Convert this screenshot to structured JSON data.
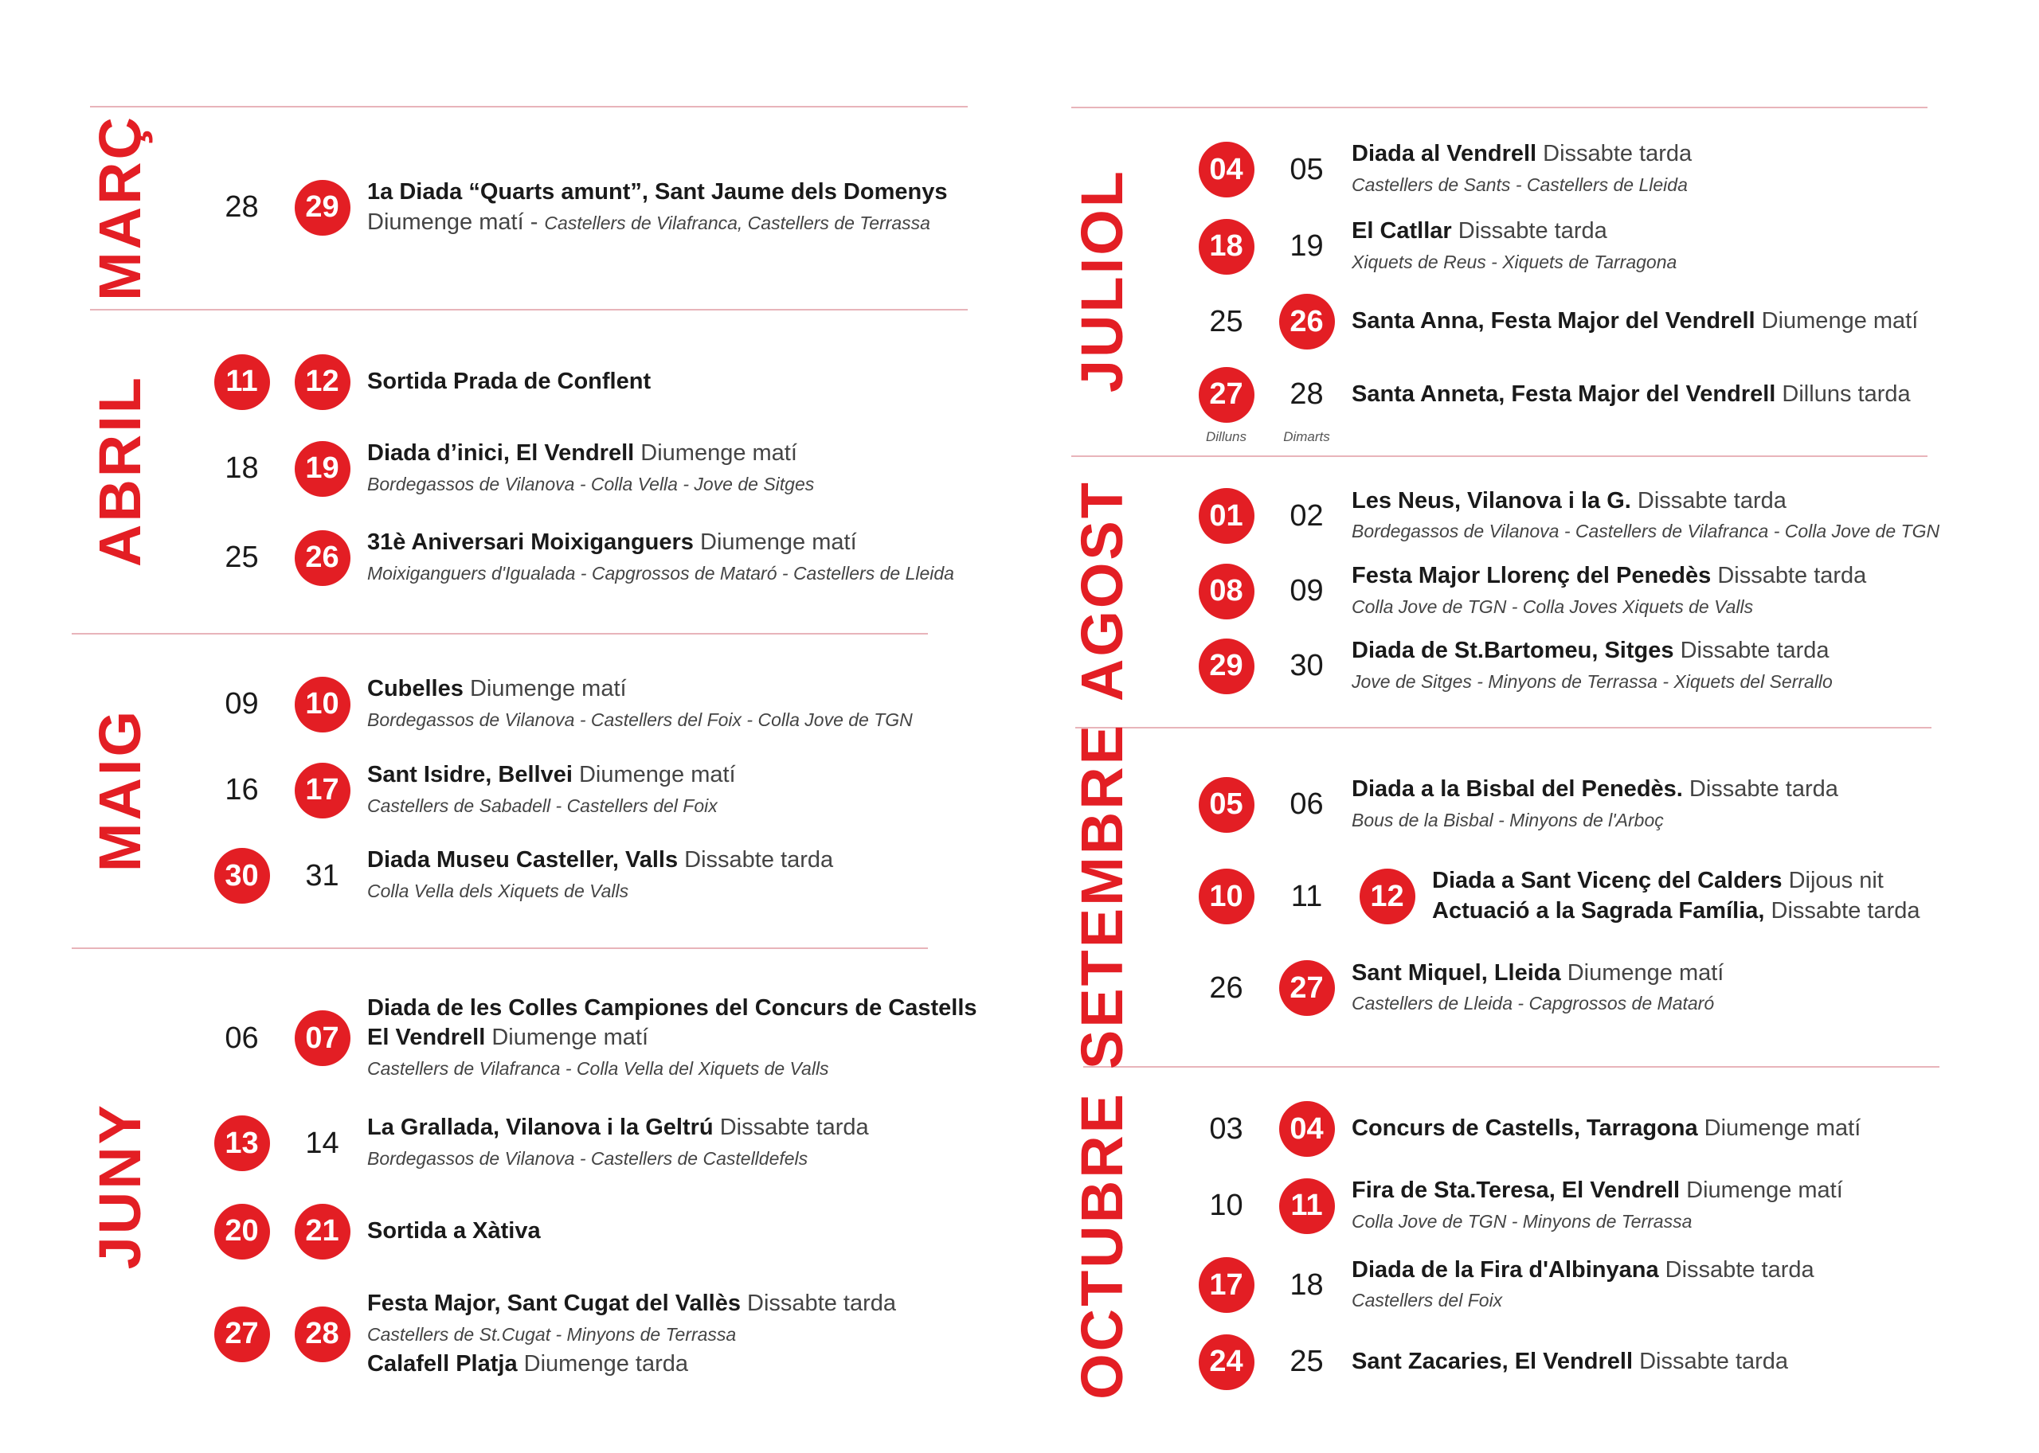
{
  "months": [
    {
      "name": "MARÇ",
      "entries": [
        {
          "days": [
            {
              "num": "28",
              "circled": false
            },
            {
              "num": "29",
              "circled": true
            }
          ],
          "lines": [
            {
              "bold": "1a Diada “Quarts amunt”, Sant Jaume dels  Domenys"
            },
            {
              "normal": "Diumenge matí -",
              "note": "Castellers de Vilafranca, Castellers de Terrassa"
            }
          ]
        }
      ]
    },
    {
      "name": "ABRIL",
      "entries": [
        {
          "days": [
            {
              "num": "11",
              "circled": true
            },
            {
              "num": "12",
              "circled": true
            }
          ],
          "lines": [
            {
              "bold": "Sortida Prada de Conflent"
            }
          ]
        },
        {
          "days": [
            {
              "num": "18",
              "circled": false
            },
            {
              "num": "19",
              "circled": true
            }
          ],
          "lines": [
            {
              "bold": "Diada d’inici, El Vendrell",
              "normal": "Diumenge matí"
            },
            {
              "note": "Bordegassos de Vilanova - Colla Vella - Jove de Sitges"
            }
          ]
        },
        {
          "days": [
            {
              "num": "25",
              "circled": false
            },
            {
              "num": "26",
              "circled": true
            }
          ],
          "lines": [
            {
              "bold": "31è Aniversari Moixiganguers",
              "normal": "Diumenge matí"
            },
            {
              "note": "Moixiganguers d'Igualada - Capgrossos de Mataró - Castellers de Lleida"
            }
          ]
        }
      ]
    },
    {
      "name": "MAIG",
      "entries": [
        {
          "days": [
            {
              "num": "09",
              "circled": false
            },
            {
              "num": "10",
              "circled": true
            }
          ],
          "lines": [
            {
              "bold": "Cubelles",
              "normal": "Diumenge matí"
            },
            {
              "note": "Bordegassos de Vilanova - Castellers del Foix - Colla Jove de TGN"
            }
          ]
        },
        {
          "days": [
            {
              "num": "16",
              "circled": false
            },
            {
              "num": "17",
              "circled": true
            }
          ],
          "lines": [
            {
              "bold": "Sant Isidre, Bellvei",
              "normal": "Diumenge matí"
            },
            {
              "note": "Castellers de Sabadell - Castellers del Foix"
            }
          ]
        },
        {
          "days": [
            {
              "num": "30",
              "circled": true
            },
            {
              "num": "31",
              "circled": false
            }
          ],
          "lines": [
            {
              "bold": "Diada Museu Casteller, Valls",
              "normal": "Dissabte tarda"
            },
            {
              "note": "Colla Vella dels Xiquets de Valls"
            }
          ]
        }
      ]
    },
    {
      "name": "JUNY",
      "entries": [
        {
          "days": [
            {
              "num": "06",
              "circled": false
            },
            {
              "num": "07",
              "circled": true
            }
          ],
          "lines": [
            {
              "bold": "Diada de les Colles Campiones del Concurs de Castells"
            },
            {
              "bold": "El Vendrell",
              "normal": "Diumenge matí"
            },
            {
              "note": "Castellers de Vilafranca -  Colla Vella del Xiquets de Valls"
            }
          ]
        },
        {
          "days": [
            {
              "num": "13",
              "circled": true
            },
            {
              "num": "14",
              "circled": false
            }
          ],
          "lines": [
            {
              "bold": "La Grallada, Vilanova i la Geltrú",
              "normal": "Dissabte tarda"
            },
            {
              "note": "Bordegassos de Vilanova - Castellers de Castelldefels"
            }
          ]
        },
        {
          "days": [
            {
              "num": "20",
              "circled": true
            },
            {
              "num": "21",
              "circled": true
            }
          ],
          "lines": [
            {
              "bold": "Sortida a Xàtiva"
            }
          ]
        },
        {
          "days": [
            {
              "num": "27",
              "circled": true
            },
            {
              "num": "28",
              "circled": true
            }
          ],
          "lines": [
            {
              "bold": "Festa Major, Sant Cugat del Vallès",
              "normal": "Dissabte tarda"
            },
            {
              "note": "Castellers de St.Cugat - Minyons de Terrassa"
            },
            {
              "bold": "Calafell Platja",
              "normal": "Diumenge tarda"
            }
          ]
        }
      ]
    },
    {
      "name": "JULIOL",
      "entries": [
        {
          "days": [
            {
              "num": "04",
              "circled": true
            },
            {
              "num": "05",
              "circled": false
            }
          ],
          "lines": [
            {
              "bold": "Diada al Vendrell",
              "normal": "Dissabte tarda"
            },
            {
              "note": "Castellers de Sants -  Castellers de Lleida"
            }
          ]
        },
        {
          "days": [
            {
              "num": "18",
              "circled": true
            },
            {
              "num": "19",
              "circled": false
            }
          ],
          "lines": [
            {
              "bold": "El Catllar",
              "normal": "Dissabte tarda"
            },
            {
              "note": "Xiquets de Reus - Xiquets de Tarragona"
            }
          ]
        },
        {
          "days": [
            {
              "num": "25",
              "circled": false
            },
            {
              "num": "26",
              "circled": true
            }
          ],
          "lines": [
            {
              "bold": "Santa Anna, Festa Major del Vendrell",
              "normal": "Diumenge matí"
            }
          ]
        },
        {
          "days": [
            {
              "num": "27",
              "circled": true,
              "sub": "Dilluns"
            },
            {
              "num": "28",
              "circled": false,
              "sub": "Dimarts"
            }
          ],
          "lines": [
            {
              "bold": "Santa Anneta, Festa Major del Vendrell",
              "normal": "Dilluns tarda"
            }
          ]
        }
      ]
    },
    {
      "name": "AGOST",
      "entries": [
        {
          "days": [
            {
              "num": "01",
              "circled": true
            },
            {
              "num": "02",
              "circled": false
            }
          ],
          "lines": [
            {
              "bold": "Les Neus, Vilanova i la G.",
              "normal": "Dissabte tarda"
            },
            {
              "note": "Bordegassos de Vilanova - Castellers de Vilafranca - Colla Jove de TGN"
            }
          ]
        },
        {
          "days": [
            {
              "num": "08",
              "circled": true
            },
            {
              "num": "09",
              "circled": false
            }
          ],
          "lines": [
            {
              "bold": "Festa Major Llorenç del Penedès",
              "normal": "Dissabte tarda"
            },
            {
              "note": "Colla Jove de TGN - Colla Joves Xiquets de Valls"
            }
          ]
        },
        {
          "days": [
            {
              "num": "29",
              "circled": true
            },
            {
              "num": "30",
              "circled": false
            }
          ],
          "lines": [
            {
              "bold": "Diada de St.Bartomeu, Sitges",
              "normal": "Dissabte tarda"
            },
            {
              "note": "Jove de Sitges - Minyons de Terrassa - Xiquets del Serrallo"
            }
          ]
        }
      ]
    },
    {
      "name": "SETEMBRE",
      "entries": [
        {
          "days": [
            {
              "num": "05",
              "circled": true
            },
            {
              "num": "06",
              "circled": false
            }
          ],
          "lines": [
            {
              "bold": "Diada a la Bisbal del Penedès.",
              "normal": "Dissabte tarda"
            },
            {
              "note": "Bous de la Bisbal -  Minyons de l'Arboç"
            }
          ]
        },
        {
          "days": [
            {
              "num": "10",
              "circled": true
            },
            {
              "num": "11",
              "circled": false
            },
            {
              "num": "12",
              "circled": true
            }
          ],
          "lines": [
            {
              "bold": "Diada a Sant Vicenç del Calders",
              "normal": "Dijous nit"
            },
            {
              "bold": "Actuació a la Sagrada Família,",
              "normal": "Dissabte tarda"
            }
          ]
        },
        {
          "days": [
            {
              "num": "26",
              "circled": false
            },
            {
              "num": "27",
              "circled": true
            }
          ],
          "lines": [
            {
              "bold": "Sant Miquel, Lleida",
              "normal": "Diumenge matí"
            },
            {
              "note": "Castellers de Lleida -  Capgrossos de Mataró"
            }
          ]
        }
      ]
    },
    {
      "name": "OCTUBRE",
      "entries": [
        {
          "days": [
            {
              "num": "03",
              "circled": false
            },
            {
              "num": "04",
              "circled": true
            }
          ],
          "lines": [
            {
              "bold": "Concurs de Castells, Tarragona",
              "normal": "Diumenge matí"
            }
          ]
        },
        {
          "days": [
            {
              "num": "10",
              "circled": false
            },
            {
              "num": "11",
              "circled": true
            }
          ],
          "lines": [
            {
              "bold": "Fira de Sta.Teresa, El Vendrell",
              "normal": "Diumenge matí"
            },
            {
              "note": "Colla Jove de TGN -  Minyons de Terrassa"
            }
          ]
        },
        {
          "days": [
            {
              "num": "17",
              "circled": true
            },
            {
              "num": "18",
              "circled": false
            }
          ],
          "lines": [
            {
              "bold": "Diada de la Fira d'Albinyana",
              "normal": "Dissabte tarda"
            },
            {
              "note": "Castellers del Foix"
            }
          ]
        },
        {
          "days": [
            {
              "num": "24",
              "circled": true
            },
            {
              "num": "25",
              "circled": false
            }
          ],
          "lines": [
            {
              "bold": "Sant Zacaries, El Vendrell",
              "normal": "Dissabte tarda"
            }
          ]
        }
      ]
    }
  ]
}
